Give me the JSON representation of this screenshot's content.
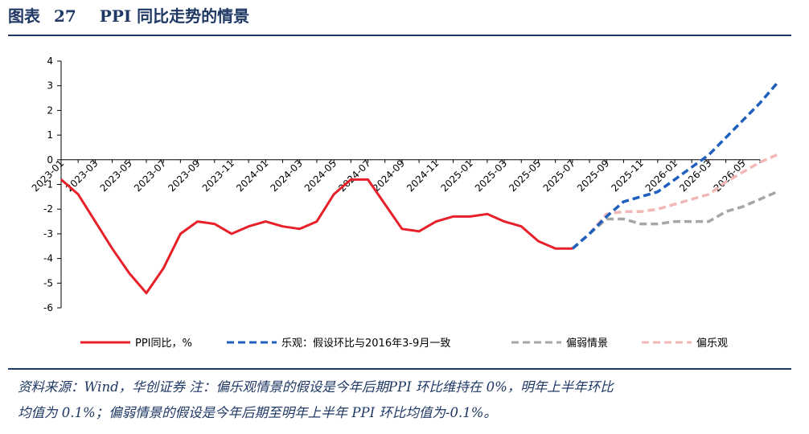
{
  "header": {
    "label": "图表",
    "number": "27",
    "title": "PPI 同比走势的情景"
  },
  "footnote": {
    "source_line1": "资料来源：Wind，华创证券  注：偏乐观情景的假设是今年后期PPI 环比维持在 0%，明年上半年环比",
    "source_line2": "均值为 0.1%；偏弱情景的假设是今年后期至明年上半年 PPI 环比均值为-0.1%。"
  },
  "colors": {
    "ppi": "#e8202a",
    "optimistic": "#1f5fbd",
    "weak": "#a6a6a6",
    "slightly_optimistic": "#f2b8b8",
    "axis": "#000000"
  },
  "chart_data": {
    "type": "line",
    "ylim": [
      -6,
      4
    ],
    "yticks": [
      "4",
      "3",
      "2",
      "1",
      "0",
      "-1",
      "-2",
      "-3",
      "-4",
      "-5",
      "-6"
    ],
    "x_tick_labels": [
      "2023-01",
      "2023-03",
      "2023-05",
      "2023-07",
      "2023-09",
      "2023-11",
      "2024-01",
      "2024-03",
      "2024-05",
      "2024-07",
      "2024-09",
      "2024-11",
      "2025-01",
      "2025-03",
      "2025-05",
      "2025-07",
      "2025-09",
      "2025-11",
      "2026-01",
      "2026-03",
      "2026-05"
    ],
    "x_months": [
      "2023-01",
      "2023-02",
      "2023-03",
      "2023-04",
      "2023-05",
      "2023-06",
      "2023-07",
      "2023-08",
      "2023-09",
      "2023-10",
      "2023-11",
      "2023-12",
      "2024-01",
      "2024-02",
      "2024-03",
      "2024-04",
      "2024-05",
      "2024-06",
      "2024-07",
      "2024-08",
      "2024-09",
      "2024-10",
      "2024-11",
      "2024-12",
      "2025-01",
      "2025-02",
      "2025-03",
      "2025-04",
      "2025-05",
      "2025-06",
      "2025-07",
      "2025-08",
      "2025-09",
      "2025-10",
      "2025-11",
      "2025-12",
      "2026-01",
      "2026-02",
      "2026-03",
      "2026-04",
      "2026-05",
      "2026-06"
    ],
    "grid": false,
    "legend_position": "bottom",
    "series": [
      {
        "name": "PPI同比，%",
        "key": "ppi",
        "dash": "solid",
        "start_month": "2023-01",
        "values": [
          -0.8,
          -1.4,
          -2.5,
          -3.6,
          -4.6,
          -5.4,
          -4.4,
          -3.0,
          -2.5,
          -2.6,
          -3.0,
          -2.7,
          -2.5,
          -2.7,
          -2.8,
          -2.5,
          -1.4,
          -0.8,
          -0.8,
          -1.8,
          -2.8,
          -2.9,
          -2.5,
          -2.3,
          -2.3,
          -2.2,
          -2.5,
          -2.7,
          -3.3,
          -3.6,
          -3.6
        ]
      },
      {
        "name": "乐观：假设环比与2016年3-9月一致",
        "key": "optimistic",
        "dash": "dashed",
        "start_month": "2025-07",
        "values": [
          -3.6,
          -3.0,
          -2.3,
          -1.7,
          -1.5,
          -1.3,
          -0.8,
          -0.3,
          0.2,
          0.9,
          1.6,
          2.3,
          3.1
        ]
      },
      {
        "name": "偏弱情景",
        "key": "weak",
        "dash": "dashed",
        "start_month": "2025-07",
        "values": [
          -3.6,
          -3.0,
          -2.4,
          -2.4,
          -2.6,
          -2.6,
          -2.5,
          -2.5,
          -2.5,
          -2.1,
          -1.9,
          -1.6,
          -1.3
        ]
      },
      {
        "name": "偏乐观",
        "key": "slightly_optimistic",
        "dash": "dashed",
        "start_month": "2025-07",
        "values": [
          -3.6,
          -3.0,
          -2.2,
          -2.1,
          -2.1,
          -2.0,
          -1.8,
          -1.6,
          -1.4,
          -0.9,
          -0.5,
          -0.1,
          0.2
        ]
      }
    ]
  }
}
